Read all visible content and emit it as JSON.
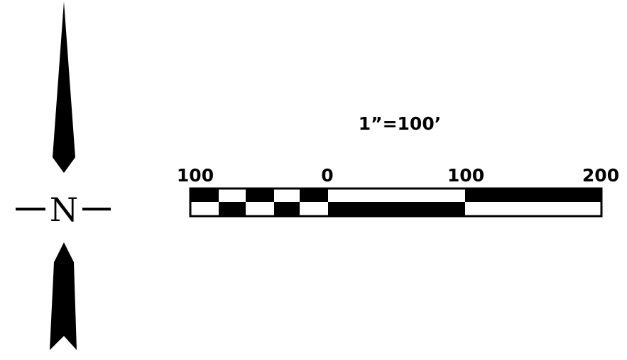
{
  "north_arrow": {
    "letter": "N",
    "icon": "north-arrow-icon"
  },
  "scale_bar": {
    "ratio_label": "1”=100’",
    "tick_labels": [
      "100",
      "0",
      "100",
      "200"
    ],
    "colors": {
      "fill": "#000000",
      "background": "#ffffff"
    }
  }
}
